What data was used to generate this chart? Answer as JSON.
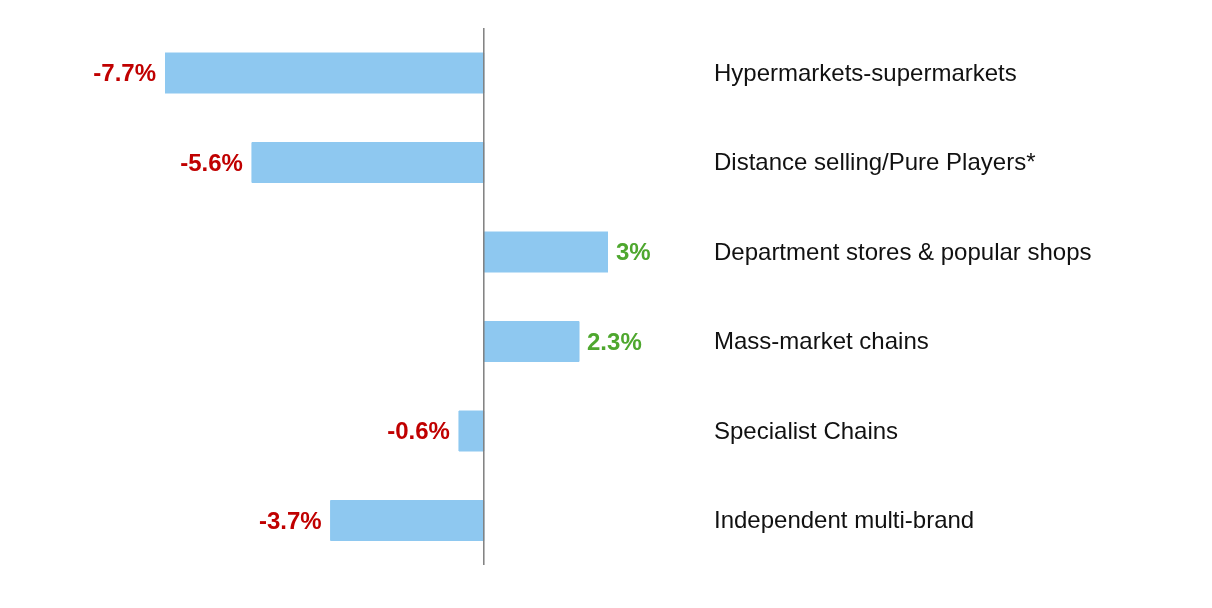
{
  "chart_data": {
    "type": "bar",
    "orientation": "horizontal",
    "categories": [
      "Hypermarkets-supermarkets",
      "Distance selling/Pure Players*",
      "Department stores & popular shops",
      "Mass-market chains",
      "Specialist Chains",
      "Independent multi-brand"
    ],
    "values": [
      -7.7,
      -5.6,
      3,
      2.3,
      -0.6,
      -3.7
    ],
    "value_labels": [
      "-7.7%",
      "-5.6%",
      "3%",
      "2.3%",
      "-0.6%",
      "-3.7%"
    ],
    "color": "#8ec8f0",
    "ref_lines": [
      {
        "axis": "x",
        "value": 0,
        "color": "#7f7f7f"
      }
    ],
    "tick_labels": "y",
    "grid": false,
    "legend": false
  }
}
